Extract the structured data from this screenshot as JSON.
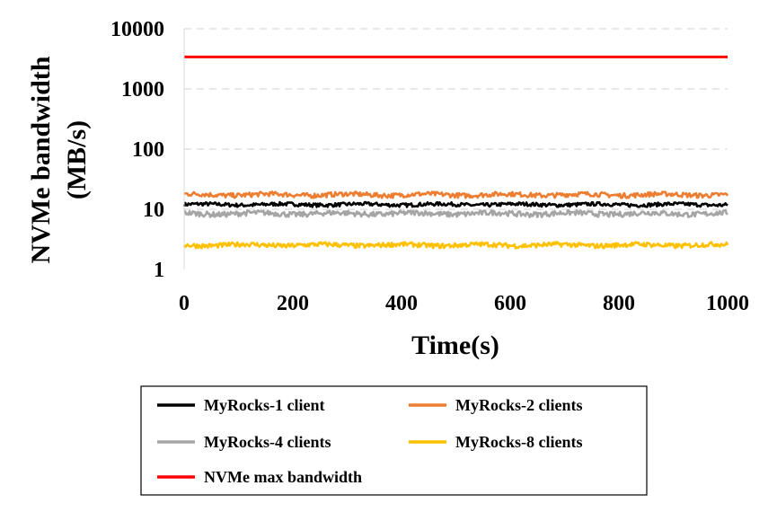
{
  "chart_data": {
    "type": "line",
    "xlabel": "Time(s)",
    "ylabel_line1": "NVMe bandwidth",
    "ylabel_line2": "(MB/s)",
    "xlim": [
      0,
      1000
    ],
    "ylim": [
      1,
      10000
    ],
    "yscale": "log",
    "x_ticks": [
      0,
      200,
      400,
      600,
      800,
      1000
    ],
    "y_ticks": [
      1,
      10,
      100,
      1000,
      10000
    ],
    "grid": "horizontal dashed",
    "legend_position": "bottom",
    "series": [
      {
        "name": "MyRocks-1 client",
        "color": "#000000",
        "level": 12,
        "noise": 0.07
      },
      {
        "name": "MyRocks-2 clients",
        "color": "#ed7d31",
        "level": 17.5,
        "noise": 0.09
      },
      {
        "name": "MyRocks-4 clients",
        "color": "#a5a5a5",
        "level": 8.5,
        "noise": 0.1
      },
      {
        "name": "MyRocks-8 clients",
        "color": "#ffc000",
        "level": 2.55,
        "noise": 0.09
      },
      {
        "name": "NVMe max bandwidth",
        "color": "#ff0000",
        "level": 3400,
        "noise": 0
      }
    ]
  }
}
